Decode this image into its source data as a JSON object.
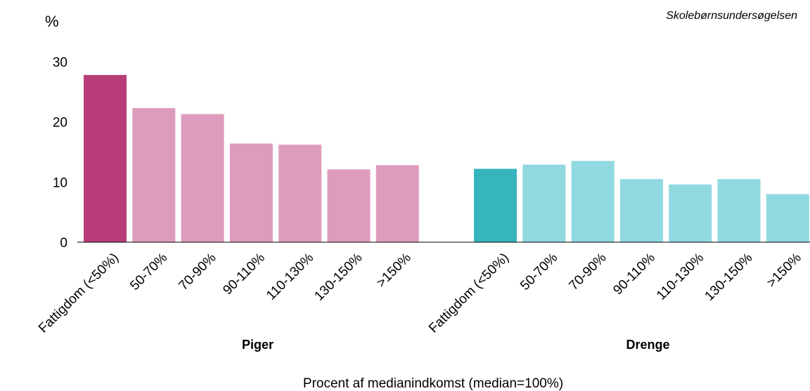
{
  "chart_data": {
    "type": "bar",
    "ylabel": "%",
    "source": "Skolebørnsundersøgelsen",
    "xlabel": "Procent af medianindkomst (median=100%)",
    "ylim": [
      0,
      30
    ],
    "yticks": [
      0,
      10,
      20,
      30
    ],
    "grid": false,
    "legend": "none",
    "groups": [
      {
        "name": "Piger",
        "categories": [
          "Fattigdom (<50%)",
          "50-70%",
          "70-90%",
          "90-110%",
          "110-130%",
          "130-150%",
          ">150%"
        ],
        "values": [
          27.8,
          22.3,
          21.3,
          16.4,
          16.2,
          12.1,
          12.8
        ],
        "highlight_color": "#b83c78",
        "color": "#de9cbc"
      },
      {
        "name": "Drenge",
        "categories": [
          "Fattigdom (<50%)",
          "50-70%",
          "70-90%",
          "90-110%",
          "110-130%",
          "130-150%",
          ">150%"
        ],
        "values": [
          12.2,
          12.9,
          13.5,
          10.5,
          9.6,
          10.5,
          8.0
        ],
        "highlight_color": "#37b5bf",
        "color": "#90d9e1"
      }
    ]
  }
}
